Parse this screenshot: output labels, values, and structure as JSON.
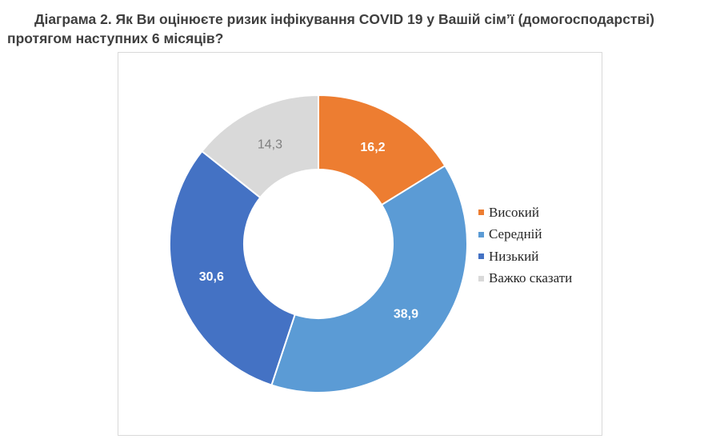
{
  "title": "Діаграма 2. Як Ви оцінюєте ризик інфікування COVID 19 у Вашій сім’ї (домогосподарстві) протягом наступних 6 місяців?",
  "chart_data": {
    "type": "pie",
    "donut": true,
    "categories": [
      "Високий",
      "Середній",
      "Низький",
      "Важко сказати"
    ],
    "values": [
      16.2,
      38.9,
      30.6,
      14.3
    ],
    "labels": [
      "16,2",
      "38,9",
      "30,6",
      "14,3"
    ],
    "colors": [
      "#ed7d31",
      "#5b9bd5",
      "#4472c4",
      "#d9d9d9"
    ],
    "label_colors": [
      "#ffffff",
      "#ffffff",
      "#ffffff",
      "#7f7f7f"
    ],
    "legend_position": "right"
  }
}
